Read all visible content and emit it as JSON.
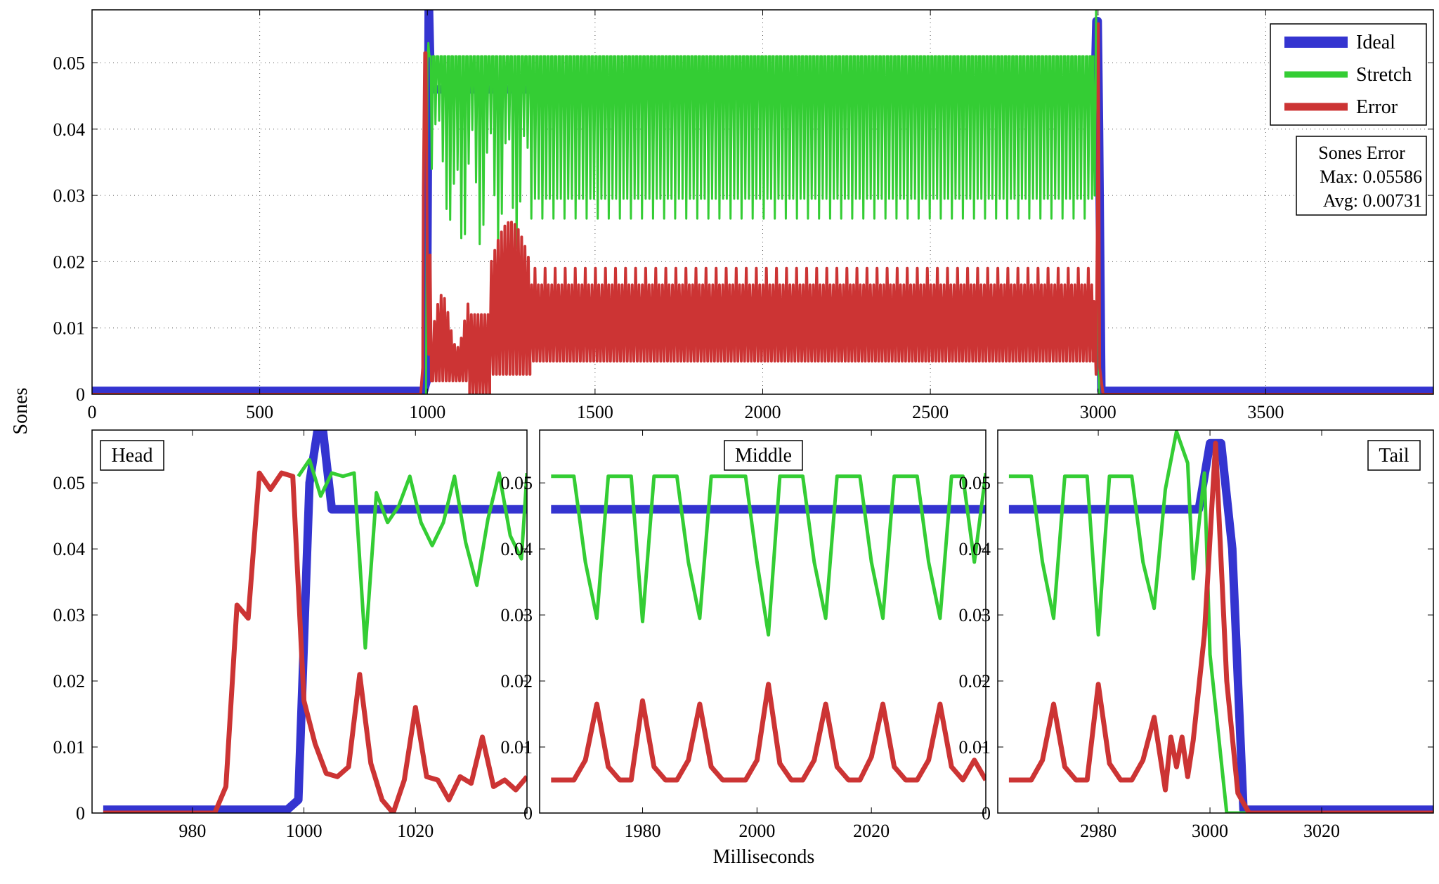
{
  "ylabel": "Sones",
  "xlabel": "Milliseconds",
  "colors": {
    "Ideal": "#3434d0",
    "Stretch": "#34cd34",
    "Error": "#cc3434"
  },
  "legend": {
    "position": "top-right",
    "items": [
      "Ideal",
      "Stretch",
      "Error"
    ]
  },
  "stats_box": {
    "title": "Sones Error",
    "max": "Max: 0.05586",
    "avg": "Avg: 0.00731"
  },
  "chart_data": [
    {
      "type": "line",
      "panel": "overview",
      "xlim": [
        0,
        4000
      ],
      "ylim": [
        0,
        0.058
      ],
      "xticks": [
        0,
        500,
        1000,
        1500,
        2000,
        2500,
        3000,
        3500
      ],
      "yticks": [
        0,
        0.01,
        0.02,
        0.03,
        0.04,
        0.05
      ],
      "grid": true,
      "series": [
        {
          "name": "Ideal",
          "x": [
            0,
            960,
            990,
            998,
            1004,
            1010,
            1020,
            2990,
            2995,
            2999,
            3003,
            3010,
            3015,
            4000
          ],
          "y": [
            0.0005,
            0.0005,
            0.0005,
            0.002,
            0.06,
            0.047,
            0.046,
            0.046,
            0.0563,
            0.0563,
            0.04,
            0.0005,
            0.0005,
            0.0005
          ]
        },
        {
          "name": "Stretch",
          "x": [
            1000,
            1003,
            1010,
            1020,
            1030,
            1040,
            1060,
            1080,
            1110,
            1140,
            1170,
            1200,
            1230,
            1260,
            1300,
            1400,
            1500,
            1600,
            1700,
            1800,
            1900,
            2000,
            2100,
            2200,
            2300,
            2400,
            2500,
            2600,
            2700,
            2800,
            2900,
            2985,
            2994,
            3003,
            3010
          ],
          "y": [
            0.05,
            0.053,
            0.05,
            0.05,
            0.05,
            0.05,
            0.05,
            0.05,
            0.05,
            0.05,
            0.05,
            0.05,
            0.05,
            0.05,
            0.05,
            0.05,
            0.05,
            0.05,
            0.05,
            0.05,
            0.05,
            0.05,
            0.05,
            0.05,
            0.05,
            0.05,
            0.05,
            0.05,
            0.05,
            0.05,
            0.05,
            0.05,
            0.0578,
            0.0,
            0.0
          ]
        },
        {
          "name": "Error",
          "x": [
            0,
            980,
            986,
            988,
            992,
            996,
            1000,
            1004,
            1008,
            1012,
            1016,
            1050,
            1100,
            1150,
            1200,
            1250,
            1300,
            1500,
            2000,
            2500,
            2985,
            3001,
            3005,
            3015,
            4000
          ],
          "y": [
            0.0,
            0.0,
            0.004,
            0.031,
            0.0515,
            0.0515,
            0.017,
            0.006,
            0.021,
            0.002,
            0.0,
            0.008,
            0.004,
            0.002,
            0.018,
            0.009,
            0.007,
            0.007,
            0.007,
            0.007,
            0.007,
            0.0559,
            0.004,
            0.0,
            0.0
          ]
        }
      ]
    },
    {
      "type": "line",
      "panel": "head",
      "label": "Head",
      "xlim": [
        962,
        1040
      ],
      "ylim": [
        0,
        0.058
      ],
      "xticks": [
        980,
        1000,
        1020
      ],
      "yticks": [
        0,
        0.01,
        0.02,
        0.03,
        0.04,
        0.05
      ],
      "grid": false,
      "series": [
        {
          "name": "Ideal",
          "x": [
            964,
            997,
            999,
            1001,
            1003,
            1005,
            1040
          ],
          "y": [
            0.0005,
            0.0005,
            0.002,
            0.05,
            0.061,
            0.046,
            0.046
          ]
        },
        {
          "name": "Stretch",
          "x": [
            999,
            1001,
            1003,
            1005,
            1007,
            1009,
            1011,
            1013,
            1015,
            1017,
            1019,
            1021,
            1023,
            1025,
            1027,
            1029,
            1031,
            1033,
            1035,
            1037,
            1039,
            1040
          ],
          "y": [
            0.051,
            0.0535,
            0.048,
            0.0515,
            0.051,
            0.0515,
            0.025,
            0.0485,
            0.044,
            0.0465,
            0.051,
            0.044,
            0.0405,
            0.044,
            0.051,
            0.041,
            0.0345,
            0.0445,
            0.0515,
            0.042,
            0.0385,
            0.0515
          ]
        },
        {
          "name": "Error",
          "x": [
            964,
            984,
            986,
            988,
            990,
            992,
            994,
            996,
            998,
            1000,
            1002,
            1004,
            1006,
            1008,
            1010,
            1012,
            1014,
            1016,
            1018,
            1020,
            1022,
            1024,
            1026,
            1028,
            1030,
            1032,
            1034,
            1036,
            1038,
            1040
          ],
          "y": [
            0.0,
            0.0,
            0.004,
            0.0315,
            0.0295,
            0.0515,
            0.049,
            0.0515,
            0.051,
            0.017,
            0.0105,
            0.006,
            0.0055,
            0.007,
            0.021,
            0.0075,
            0.002,
            0.0,
            0.005,
            0.016,
            0.0055,
            0.005,
            0.002,
            0.0055,
            0.0045,
            0.0115,
            0.004,
            0.005,
            0.0035,
            0.0055
          ]
        }
      ]
    },
    {
      "type": "line",
      "panel": "middle",
      "label": "Middle",
      "xlim": [
        1962,
        2040
      ],
      "ylim": [
        0,
        0.058
      ],
      "xticks": [
        1980,
        2000,
        2020
      ],
      "yticks": [
        0,
        0.01,
        0.02,
        0.03,
        0.04,
        0.05
      ],
      "grid": false,
      "series": [
        {
          "name": "Ideal",
          "x": [
            1964,
            2040
          ],
          "y": [
            0.046,
            0.046
          ]
        },
        {
          "name": "Stretch",
          "x": [
            1964,
            1966,
            1968,
            1970,
            1972,
            1974,
            1976,
            1978,
            1980,
            1982,
            1984,
            1986,
            1988,
            1990,
            1992,
            1994,
            1996,
            1998,
            2000,
            2002,
            2004,
            2006,
            2008,
            2010,
            2012,
            2014,
            2016,
            2018,
            2020,
            2022,
            2024,
            2026,
            2028,
            2030,
            2032,
            2034,
            2036,
            2038,
            2040
          ],
          "y": [
            0.051,
            0.051,
            0.051,
            0.038,
            0.0295,
            0.051,
            0.051,
            0.051,
            0.029,
            0.051,
            0.051,
            0.051,
            0.038,
            0.0295,
            0.051,
            0.051,
            0.051,
            0.051,
            0.038,
            0.027,
            0.051,
            0.051,
            0.051,
            0.038,
            0.0295,
            0.051,
            0.051,
            0.051,
            0.038,
            0.0295,
            0.051,
            0.051,
            0.051,
            0.038,
            0.0295,
            0.051,
            0.051,
            0.038,
            0.0515
          ]
        },
        {
          "name": "Error",
          "x": [
            1964,
            1966,
            1968,
            1970,
            1972,
            1974,
            1976,
            1978,
            1980,
            1982,
            1984,
            1986,
            1988,
            1990,
            1992,
            1994,
            1996,
            1998,
            2000,
            2002,
            2004,
            2006,
            2008,
            2010,
            2012,
            2014,
            2016,
            2018,
            2020,
            2022,
            2024,
            2026,
            2028,
            2030,
            2032,
            2034,
            2036,
            2038,
            2040
          ],
          "y": [
            0.005,
            0.005,
            0.005,
            0.008,
            0.0165,
            0.007,
            0.005,
            0.005,
            0.017,
            0.007,
            0.005,
            0.005,
            0.008,
            0.0165,
            0.007,
            0.005,
            0.005,
            0.005,
            0.008,
            0.0195,
            0.0075,
            0.005,
            0.005,
            0.008,
            0.0165,
            0.007,
            0.005,
            0.005,
            0.0085,
            0.0165,
            0.007,
            0.005,
            0.005,
            0.008,
            0.0165,
            0.007,
            0.005,
            0.008,
            0.005
          ]
        }
      ]
    },
    {
      "type": "line",
      "panel": "tail",
      "label": "Tail",
      "xlim": [
        2962,
        3040
      ],
      "ylim": [
        0,
        0.058
      ],
      "xticks": [
        2980,
        3000,
        3020
      ],
      "yticks": [
        0,
        0.01,
        0.02,
        0.03,
        0.04,
        0.05
      ],
      "grid": false,
      "series": [
        {
          "name": "Ideal",
          "x": [
            2964,
            2998,
            3000,
            3002,
            3004,
            3006,
            3040
          ],
          "y": [
            0.046,
            0.046,
            0.056,
            0.056,
            0.04,
            0.0005,
            0.0005
          ]
        },
        {
          "name": "Stretch",
          "x": [
            2964,
            2966,
            2968,
            2970,
            2972,
            2974,
            2976,
            2978,
            2980,
            2982,
            2984,
            2986,
            2988,
            2990,
            2992,
            2994,
            2996,
            2997,
            2999,
            3000,
            3003,
            3040
          ],
          "y": [
            0.051,
            0.051,
            0.051,
            0.038,
            0.0295,
            0.051,
            0.051,
            0.051,
            0.027,
            0.051,
            0.051,
            0.051,
            0.038,
            0.031,
            0.049,
            0.0578,
            0.053,
            0.0355,
            0.0515,
            0.024,
            0.0,
            0.0
          ]
        },
        {
          "name": "Error",
          "x": [
            2964,
            2966,
            2968,
            2970,
            2972,
            2974,
            2976,
            2978,
            2980,
            2982,
            2984,
            2986,
            2988,
            2990,
            2992,
            2993,
            2994,
            2995,
            2996,
            2997,
            2999,
            3001,
            3003,
            3005,
            3007,
            3040
          ],
          "y": [
            0.005,
            0.005,
            0.005,
            0.008,
            0.0165,
            0.007,
            0.005,
            0.005,
            0.0195,
            0.0075,
            0.005,
            0.005,
            0.008,
            0.0145,
            0.0035,
            0.0115,
            0.007,
            0.0115,
            0.0055,
            0.011,
            0.027,
            0.056,
            0.02,
            0.003,
            0.0,
            0.0
          ]
        }
      ]
    }
  ]
}
